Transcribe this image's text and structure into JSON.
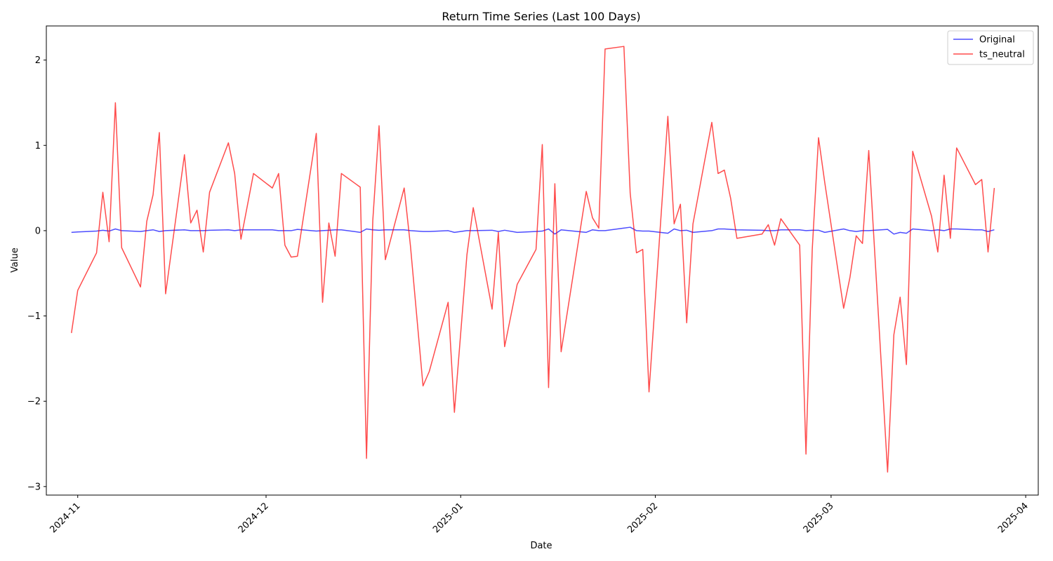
{
  "chart_data": {
    "type": "line",
    "title": "Return Time Series (Last 100 Days)",
    "xlabel": "Date",
    "ylabel": "Value",
    "xlim": [
      "2024-10-27",
      "2025-04-03"
    ],
    "ylim": [
      -3.1,
      2.4
    ],
    "x_ticks": [
      "2024-11-01",
      "2024-12-01",
      "2025-01-01",
      "2025-02-01",
      "2025-03-01",
      "2025-04-01"
    ],
    "x_tick_labels": [
      "2024-11",
      "2024-12",
      "2025-01",
      "2025-02",
      "2025-03",
      "2025-04"
    ],
    "y_ticks": [
      -3,
      -2,
      -1,
      0,
      1,
      2
    ],
    "y_tick_labels": [
      "−3",
      "−2",
      "−1",
      "0",
      "1",
      "2"
    ],
    "grid": false,
    "legend_placement": "top-right",
    "x": [
      "2024-10-31",
      "2024-11-01",
      "2024-11-04",
      "2024-11-05",
      "2024-11-06",
      "2024-11-07",
      "2024-11-08",
      "2024-11-11",
      "2024-11-12",
      "2024-11-13",
      "2024-11-14",
      "2024-11-15",
      "2024-11-18",
      "2024-11-19",
      "2024-11-20",
      "2024-11-21",
      "2024-11-22",
      "2024-11-25",
      "2024-11-26",
      "2024-11-27",
      "2024-11-29",
      "2024-12-02",
      "2024-12-03",
      "2024-12-04",
      "2024-12-05",
      "2024-12-06",
      "2024-12-09",
      "2024-12-10",
      "2024-12-11",
      "2024-12-12",
      "2024-12-13",
      "2024-12-16",
      "2024-12-17",
      "2024-12-18",
      "2024-12-19",
      "2024-12-20",
      "2024-12-23",
      "2024-12-24",
      "2024-12-26",
      "2024-12-27",
      "2024-12-30",
      "2024-12-31",
      "2025-01-02",
      "2025-01-03",
      "2025-01-06",
      "2025-01-07",
      "2025-01-08",
      "2025-01-10",
      "2025-01-13",
      "2025-01-14",
      "2025-01-15",
      "2025-01-16",
      "2025-01-17",
      "2025-01-21",
      "2025-01-22",
      "2025-01-23",
      "2025-01-24",
      "2025-01-27",
      "2025-01-28",
      "2025-01-29",
      "2025-01-30",
      "2025-01-31",
      "2025-02-03",
      "2025-02-04",
      "2025-02-05",
      "2025-02-06",
      "2025-02-07",
      "2025-02-10",
      "2025-02-11",
      "2025-02-12",
      "2025-02-13",
      "2025-02-14",
      "2025-02-18",
      "2025-02-19",
      "2025-02-20",
      "2025-02-21",
      "2025-02-24",
      "2025-02-25",
      "2025-02-26",
      "2025-02-27",
      "2025-02-28",
      "2025-03-03",
      "2025-03-04",
      "2025-03-05",
      "2025-03-06",
      "2025-03-07",
      "2025-03-10",
      "2025-03-11",
      "2025-03-12",
      "2025-03-13",
      "2025-03-14",
      "2025-03-17",
      "2025-03-18",
      "2025-03-19",
      "2025-03-20",
      "2025-03-21",
      "2025-03-24",
      "2025-03-25",
      "2025-03-26",
      "2025-03-27"
    ],
    "series": [
      {
        "name": "Original",
        "color": "#0000ff",
        "values": [
          -0.02,
          -0.015,
          -0.005,
          0.005,
          -0.005,
          0.02,
          0.0,
          -0.01,
          0.0,
          0.01,
          -0.01,
          0.0,
          0.01,
          0.0,
          0.0,
          0.0,
          0.005,
          0.01,
          0.0,
          0.01,
          0.01,
          0.01,
          0.0,
          0.0,
          0.0,
          0.015,
          -0.005,
          0.0,
          0.005,
          0.01,
          0.01,
          -0.02,
          0.02,
          0.01,
          0.005,
          0.01,
          0.01,
          0.0,
          -0.01,
          -0.01,
          0.0,
          -0.02,
          0.0,
          0.0,
          0.005,
          -0.01,
          0.005,
          -0.02,
          -0.01,
          -0.005,
          0.02,
          -0.04,
          0.01,
          -0.02,
          0.01,
          0.0,
          0.0,
          0.03,
          0.04,
          0.0,
          -0.005,
          -0.005,
          -0.03,
          0.02,
          0.0,
          0.005,
          -0.02,
          0.0,
          0.02,
          0.02,
          0.015,
          0.01,
          0.005,
          0.0,
          0.0,
          0.01,
          0.01,
          0.0,
          0.005,
          0.005,
          -0.02,
          0.02,
          0.0,
          -0.01,
          0.0,
          0.0,
          0.015,
          -0.04,
          -0.02,
          -0.03,
          0.02,
          0.0,
          0.01,
          0.0,
          0.02,
          0.02,
          0.01,
          0.01,
          -0.01,
          0.01
        ]
      },
      {
        "name": "ts_neutral",
        "color": "#ff0000",
        "values": [
          -1.2,
          -0.7,
          -0.26,
          0.45,
          -0.13,
          1.5,
          -0.2,
          -0.66,
          0.11,
          0.42,
          1.15,
          -0.74,
          0.89,
          0.09,
          0.24,
          -0.25,
          0.45,
          1.03,
          0.67,
          -0.1,
          0.67,
          0.5,
          0.67,
          -0.17,
          -0.31,
          -0.3,
          1.14,
          -0.84,
          0.09,
          -0.3,
          0.67,
          0.51,
          -2.67,
          0.12,
          1.23,
          -0.34,
          0.5,
          -0.18,
          -1.82,
          -1.65,
          -0.84,
          -2.13,
          -0.28,
          0.27,
          -0.92,
          -0.02,
          -1.36,
          -0.63,
          -0.22,
          1.01,
          -1.84,
          0.55,
          -1.42,
          0.46,
          0.15,
          0.03,
          2.13,
          2.16,
          0.44,
          -0.26,
          -0.22,
          -1.89,
          1.34,
          0.08,
          0.31,
          -1.08,
          0.08,
          1.27,
          0.67,
          0.71,
          0.38,
          -0.09,
          -0.04,
          0.07,
          -0.17,
          0.14,
          -0.17,
          -2.62,
          -0.22,
          1.09,
          0.56,
          -0.91,
          -0.55,
          -0.06,
          -0.15,
          0.94,
          -2.83,
          -1.22,
          -0.78,
          -1.57,
          0.93,
          0.17,
          -0.25,
          0.65,
          -0.09,
          0.97,
          0.54,
          0.6,
          -0.25,
          0.5
        ]
      }
    ]
  }
}
